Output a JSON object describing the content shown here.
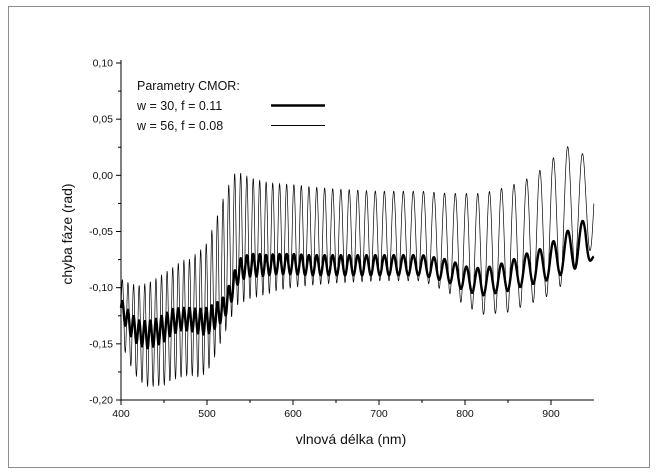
{
  "chart_data": {
    "type": "line",
    "title": "",
    "xlabel": "vlnová délka (nm)",
    "ylabel": "chyba fáze (rad)",
    "xlim": [
      400,
      950
    ],
    "ylim": [
      -0.2,
      0.1
    ],
    "x_ticks": [
      400,
      500,
      600,
      700,
      800,
      900
    ],
    "x_tick_labels": [
      "400",
      "500",
      "600",
      "700",
      "800",
      "900"
    ],
    "y_ticks": [
      0.1,
      0.05,
      0.0,
      -0.05,
      -0.1,
      -0.15,
      -0.2
    ],
    "y_tick_labels": [
      "0,10",
      "0,05",
      "0,00",
      "-0,05",
      "-0,10",
      "-0,15",
      "-0,20"
    ],
    "grid": false,
    "legend": {
      "title": "Parametry CMOR:",
      "placement": "top-left"
    },
    "series": [
      {
        "name": "w = 30, f = 0.11",
        "color": "#000000",
        "style": "thick",
        "x": [
          400,
          410,
          420,
          430,
          440,
          450,
          460,
          470,
          480,
          490,
          500,
          510,
          520,
          530,
          535,
          540,
          550,
          560,
          570,
          580,
          600,
          620,
          650,
          700,
          750,
          780,
          800,
          820,
          850,
          870,
          890,
          900,
          910,
          920,
          930,
          940,
          950
        ],
        "y": [
          -0.118,
          -0.132,
          -0.14,
          -0.142,
          -0.14,
          -0.136,
          -0.13,
          -0.128,
          -0.128,
          -0.13,
          -0.13,
          -0.125,
          -0.118,
          -0.1,
          -0.088,
          -0.083,
          -0.08,
          -0.08,
          -0.08,
          -0.079,
          -0.079,
          -0.08,
          -0.08,
          -0.08,
          -0.08,
          -0.085,
          -0.092,
          -0.095,
          -0.09,
          -0.084,
          -0.08,
          -0.076,
          -0.072,
          -0.068,
          -0.062,
          -0.058,
          -0.072
        ],
        "oscillation_amplitude": [
          0.008,
          0.01,
          0.011,
          0.012,
          0.012,
          0.012,
          0.011,
          0.01,
          0.01,
          0.011,
          0.012,
          0.011,
          0.01,
          0.01,
          0.01,
          0.01,
          0.01,
          0.01,
          0.009,
          0.009,
          0.009,
          0.009,
          0.009,
          0.009,
          0.009,
          0.01,
          0.011,
          0.012,
          0.013,
          0.014,
          0.015,
          0.016,
          0.017,
          0.019,
          0.02,
          0.018,
          0.004
        ],
        "oscillation_period_nm": [
          6.5,
          6.5,
          6.5,
          6.5,
          6.5,
          6.5,
          6.5,
          6.5,
          6.5,
          6.5,
          6.5,
          6.5,
          6.5,
          7,
          7,
          7,
          7.5,
          7.5,
          7.5,
          8,
          8.5,
          9,
          9.5,
          10.5,
          12,
          12.5,
          13,
          13.5,
          14.5,
          15,
          15.5,
          16,
          16.5,
          17,
          17.5,
          18,
          18
        ]
      },
      {
        "name": "w = 56, f = 0.08",
        "color": "#000000",
        "style": "thin",
        "x": [
          400,
          410,
          420,
          430,
          440,
          450,
          460,
          470,
          480,
          490,
          500,
          510,
          520,
          530,
          535,
          540,
          550,
          560,
          570,
          580,
          600,
          620,
          650,
          700,
          750,
          780,
          800,
          820,
          850,
          870,
          890,
          900,
          910,
          920,
          930,
          940,
          950
        ],
        "y": [
          -0.12,
          -0.132,
          -0.14,
          -0.142,
          -0.14,
          -0.137,
          -0.132,
          -0.128,
          -0.126,
          -0.124,
          -0.118,
          -0.1,
          -0.08,
          -0.062,
          -0.056,
          -0.056,
          -0.056,
          -0.056,
          -0.056,
          -0.055,
          -0.054,
          -0.054,
          -0.054,
          -0.054,
          -0.054,
          -0.06,
          -0.066,
          -0.07,
          -0.066,
          -0.06,
          -0.052,
          -0.046,
          -0.04,
          -0.032,
          -0.026,
          -0.03,
          -0.02
        ],
        "oscillation_amplitude": [
          0.028,
          0.036,
          0.042,
          0.046,
          0.048,
          0.05,
          0.05,
          0.052,
          0.052,
          0.056,
          0.058,
          0.06,
          0.062,
          0.062,
          0.06,
          0.058,
          0.054,
          0.052,
          0.05,
          0.048,
          0.046,
          0.044,
          0.042,
          0.04,
          0.04,
          0.044,
          0.05,
          0.054,
          0.056,
          0.056,
          0.058,
          0.06,
          0.06,
          0.058,
          0.052,
          0.046,
          0.04
        ],
        "oscillation_period_nm": [
          6.5,
          6.5,
          6.5,
          6.5,
          6.5,
          6.5,
          6.5,
          6.5,
          6.5,
          6.5,
          6.5,
          6.5,
          6.5,
          7,
          7,
          7,
          7.5,
          7.5,
          7.5,
          8,
          8.5,
          9,
          9.5,
          10.5,
          12,
          12.5,
          13,
          13.5,
          14.5,
          15,
          15.5,
          16,
          16.5,
          17,
          17.5,
          18,
          18
        ]
      }
    ]
  }
}
